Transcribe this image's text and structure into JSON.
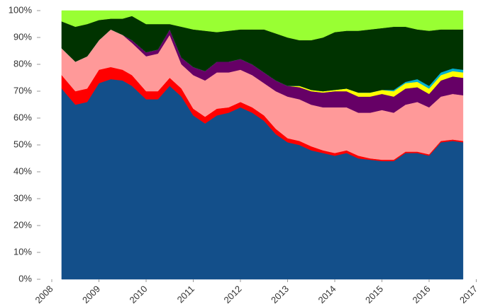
{
  "chart_data": {
    "type": "stacked_area",
    "x": [
      2008.21,
      2008.5,
      2008.75,
      2009.0,
      2009.25,
      2009.5,
      2009.7,
      2010.0,
      2010.25,
      2010.5,
      2010.75,
      2011.0,
      2011.25,
      2011.5,
      2011.75,
      2012.0,
      2012.25,
      2012.5,
      2012.75,
      2013.0,
      2013.25,
      2013.5,
      2013.75,
      2014.0,
      2014.25,
      2014.5,
      2014.75,
      2015.0,
      2015.25,
      2015.5,
      2015.75,
      2016.0,
      2016.25,
      2016.5,
      2016.72
    ],
    "series": [
      {
        "color": "#134f8a",
        "values": [
          71,
          65,
          66,
          73,
          74.5,
          74,
          72,
          67,
          67,
          72,
          68,
          61,
          58,
          61,
          62,
          64,
          62,
          59,
          54,
          51,
          50,
          48,
          47,
          46,
          47,
          45,
          44.5,
          44,
          44,
          47,
          47,
          46,
          51,
          51.5,
          51
        ]
      },
      {
        "color": "#ff0000",
        "values": [
          5,
          5,
          5,
          5,
          4.5,
          4,
          4,
          3,
          3,
          3,
          3,
          2.5,
          2.5,
          2.5,
          2,
          2,
          2,
          2,
          2,
          1.5,
          1.5,
          1.5,
          1,
          1,
          1,
          1,
          0.5,
          0.5,
          0.5,
          0.5,
          0.5,
          0.5,
          0.5,
          0.5,
          0.5
        ]
      },
      {
        "color": "#ff9999",
        "values": [
          10,
          11,
          12,
          11,
          14,
          13,
          12,
          13,
          14,
          16,
          9,
          12.5,
          13.5,
          13.5,
          13,
          12,
          12,
          12,
          14,
          15.5,
          15.5,
          15.5,
          16,
          17,
          16,
          16,
          17,
          18.5,
          17.5,
          17.5,
          18.5,
          17.5,
          16.5,
          17,
          17
        ]
      },
      {
        "color": "#660066",
        "values": [
          0,
          0,
          0,
          0,
          0,
          0,
          1,
          1.5,
          1.5,
          2,
          2.5,
          3,
          3.5,
          4,
          4,
          4,
          4,
          4,
          4,
          4,
          4.5,
          5,
          5.5,
          6,
          6,
          6,
          6,
          6,
          6,
          6,
          5.5,
          5,
          6,
          6.5,
          6.5
        ]
      },
      {
        "color": "#ffff00",
        "values": [
          0,
          0,
          0,
          0,
          0,
          0,
          0,
          0,
          0,
          0,
          0,
          0,
          0,
          0,
          0,
          0,
          0,
          0,
          0,
          0,
          0.5,
          0.5,
          0.5,
          0.5,
          1,
          1.5,
          1.5,
          1.5,
          2,
          2,
          2,
          2,
          2,
          2,
          2
        ]
      },
      {
        "color": "#00b0d0",
        "values": [
          0,
          0,
          0,
          0,
          0,
          0,
          0,
          0,
          0,
          0,
          0,
          0,
          0,
          0,
          0,
          0,
          0,
          0,
          0,
          0,
          0,
          0,
          0,
          0,
          0,
          0,
          0,
          0,
          0.5,
          0.5,
          1,
          1,
          1,
          1,
          1
        ]
      },
      {
        "color": "#003300",
        "values": [
          10,
          13,
          12,
          7.5,
          4,
          6,
          9,
          10.5,
          9.5,
          2,
          11.5,
          14,
          15,
          11,
          11.5,
          11,
          13,
          16,
          17.5,
          18,
          17,
          18.5,
          20,
          21.5,
          21.5,
          23,
          23.5,
          23,
          23.5,
          20.5,
          18.5,
          20.5,
          16,
          14.5,
          15
        ]
      },
      {
        "color": "#99ff33",
        "values": [
          4,
          6,
          5,
          3.5,
          3,
          3,
          2,
          5,
          5,
          5,
          6,
          7,
          7.5,
          8,
          7.5,
          7,
          7,
          7,
          8.5,
          10,
          11,
          11,
          10,
          8,
          7.5,
          7.5,
          7,
          6.5,
          6,
          6,
          7,
          7.5,
          7,
          7,
          7
        ]
      }
    ],
    "xlim": [
      2008,
      2017
    ],
    "xticks": [
      2008,
      2009,
      2010,
      2011,
      2012,
      2013,
      2014,
      2015,
      2016,
      2017
    ],
    "ylim": [
      0,
      100
    ],
    "yticks": [
      {
        "value": 0,
        "label": "0%"
      },
      {
        "value": 10,
        "label": "10%"
      },
      {
        "value": 20,
        "label": "20%"
      },
      {
        "value": 30,
        "label": "30%"
      },
      {
        "value": 40,
        "label": "40%"
      },
      {
        "value": 50,
        "label": "50%"
      },
      {
        "value": 60,
        "label": "60%"
      },
      {
        "value": 70,
        "label": "70%"
      },
      {
        "value": 80,
        "label": "80%"
      },
      {
        "value": 90,
        "label": "90%"
      },
      {
        "value": 100,
        "label": "100%"
      }
    ]
  }
}
